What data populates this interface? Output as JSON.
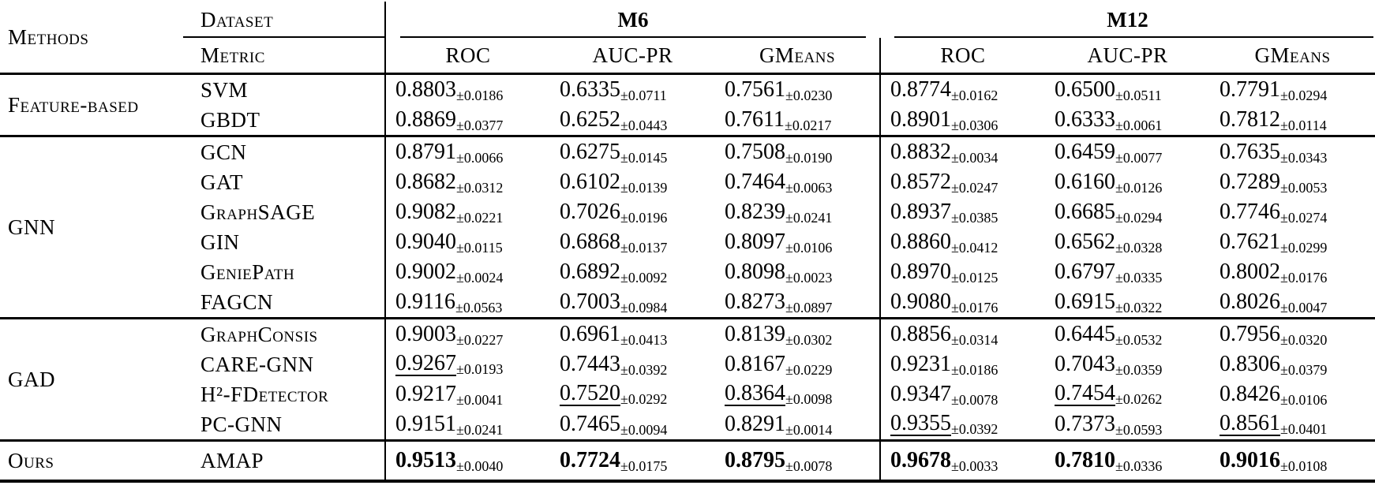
{
  "table": {
    "header": {
      "methods_label": "Methods",
      "dataset_label": "Dataset",
      "metric_label": "Metric",
      "datasets": [
        "M6",
        "M12"
      ],
      "metrics": [
        "ROC",
        "AUC-PR",
        "GMeans"
      ]
    },
    "groups": [
      {
        "name": "Feature-based",
        "rows": [
          {
            "model": "SVM",
            "cells": [
              {
                "v": "0.8803",
                "s": "0.0186"
              },
              {
                "v": "0.6335",
                "s": "0.0711"
              },
              {
                "v": "0.7561",
                "s": "0.0230"
              },
              {
                "v": "0.8774",
                "s": "0.0162"
              },
              {
                "v": "0.6500",
                "s": "0.0511"
              },
              {
                "v": "0.7791",
                "s": "0.0294"
              }
            ]
          },
          {
            "model": "GBDT",
            "cells": [
              {
                "v": "0.8869",
                "s": "0.0377"
              },
              {
                "v": "0.6252",
                "s": "0.0443"
              },
              {
                "v": "0.7611",
                "s": "0.0217"
              },
              {
                "v": "0.8901",
                "s": "0.0306"
              },
              {
                "v": "0.6333",
                "s": "0.0061"
              },
              {
                "v": "0.7812",
                "s": "0.0114"
              }
            ]
          }
        ]
      },
      {
        "name": "GNN",
        "rows": [
          {
            "model": "GCN",
            "cells": [
              {
                "v": "0.8791",
                "s": "0.0066"
              },
              {
                "v": "0.6275",
                "s": "0.0145"
              },
              {
                "v": "0.7508",
                "s": "0.0190"
              },
              {
                "v": "0.8832",
                "s": "0.0034"
              },
              {
                "v": "0.6459",
                "s": "0.0077"
              },
              {
                "v": "0.7635",
                "s": "0.0343"
              }
            ]
          },
          {
            "model": "GAT",
            "cells": [
              {
                "v": "0.8682",
                "s": "0.0312"
              },
              {
                "v": "0.6102",
                "s": "0.0139"
              },
              {
                "v": "0.7464",
                "s": "0.0063"
              },
              {
                "v": "0.8572",
                "s": "0.0247"
              },
              {
                "v": "0.6160",
                "s": "0.0126"
              },
              {
                "v": "0.7289",
                "s": "0.0053"
              }
            ]
          },
          {
            "model": "GraphSAGE",
            "cells": [
              {
                "v": "0.9082",
                "s": "0.0221"
              },
              {
                "v": "0.7026",
                "s": "0.0196"
              },
              {
                "v": "0.8239",
                "s": "0.0241"
              },
              {
                "v": "0.8937",
                "s": "0.0385"
              },
              {
                "v": "0.6685",
                "s": "0.0294"
              },
              {
                "v": "0.7746",
                "s": "0.0274"
              }
            ]
          },
          {
            "model": "GIN",
            "cells": [
              {
                "v": "0.9040",
                "s": "0.0115"
              },
              {
                "v": "0.6868",
                "s": "0.0137"
              },
              {
                "v": "0.8097",
                "s": "0.0106"
              },
              {
                "v": "0.8860",
                "s": "0.0412"
              },
              {
                "v": "0.6562",
                "s": "0.0328"
              },
              {
                "v": "0.7621",
                "s": "0.0299"
              }
            ]
          },
          {
            "model": "GeniePath",
            "cells": [
              {
                "v": "0.9002",
                "s": "0.0024"
              },
              {
                "v": "0.6892",
                "s": "0.0092"
              },
              {
                "v": "0.8098",
                "s": "0.0023"
              },
              {
                "v": "0.8970",
                "s": "0.0125"
              },
              {
                "v": "0.6797",
                "s": "0.0335"
              },
              {
                "v": "0.8002",
                "s": "0.0176"
              }
            ]
          },
          {
            "model": "FAGCN",
            "cells": [
              {
                "v": "0.9116",
                "s": "0.0563"
              },
              {
                "v": "0.7003",
                "s": "0.0984"
              },
              {
                "v": "0.8273",
                "s": "0.0897"
              },
              {
                "v": "0.9080",
                "s": "0.0176"
              },
              {
                "v": "0.6915",
                "s": "0.0322"
              },
              {
                "v": "0.8026",
                "s": "0.0047"
              }
            ]
          }
        ]
      },
      {
        "name": "GAD",
        "rows": [
          {
            "model": "GraphConsis",
            "cells": [
              {
                "v": "0.9003",
                "s": "0.0227"
              },
              {
                "v": "0.6961",
                "s": "0.0413"
              },
              {
                "v": "0.8139",
                "s": "0.0302"
              },
              {
                "v": "0.8856",
                "s": "0.0314"
              },
              {
                "v": "0.6445",
                "s": "0.0532"
              },
              {
                "v": "0.7956",
                "s": "0.0320"
              }
            ]
          },
          {
            "model": "CARE-GNN",
            "cells": [
              {
                "v": "0.9267",
                "s": "0.0193",
                "u": true
              },
              {
                "v": "0.7443",
                "s": "0.0392"
              },
              {
                "v": "0.8167",
                "s": "0.0229"
              },
              {
                "v": "0.9231",
                "s": "0.0186"
              },
              {
                "v": "0.7043",
                "s": "0.0359"
              },
              {
                "v": "0.8306",
                "s": "0.0379"
              }
            ]
          },
          {
            "model": "H²-FDetector",
            "cells": [
              {
                "v": "0.9217",
                "s": "0.0041"
              },
              {
                "v": "0.7520",
                "s": "0.0292",
                "u": true
              },
              {
                "v": "0.8364",
                "s": "0.0098",
                "u": true
              },
              {
                "v": "0.9347",
                "s": "0.0078"
              },
              {
                "v": "0.7454",
                "s": "0.0262",
                "u": true
              },
              {
                "v": "0.8426",
                "s": "0.0106"
              }
            ]
          },
          {
            "model": "PC-GNN",
            "cells": [
              {
                "v": "0.9151",
                "s": "0.0241"
              },
              {
                "v": "0.7465",
                "s": "0.0094"
              },
              {
                "v": "0.8291",
                "s": "0.0014"
              },
              {
                "v": "0.9355",
                "s": "0.0392",
                "u": true
              },
              {
                "v": "0.7373",
                "s": "0.0593"
              },
              {
                "v": "0.8561",
                "s": "0.0401",
                "u": true
              }
            ]
          }
        ]
      },
      {
        "name": "Ours",
        "rows": [
          {
            "model": "AMAP",
            "bold": true,
            "cells": [
              {
                "v": "0.9513",
                "s": "0.0040"
              },
              {
                "v": "0.7724",
                "s": "0.0175"
              },
              {
                "v": "0.8795",
                "s": "0.0078"
              },
              {
                "v": "0.9678",
                "s": "0.0033"
              },
              {
                "v": "0.7810",
                "s": "0.0336"
              },
              {
                "v": "0.9016",
                "s": "0.0108"
              }
            ]
          }
        ]
      }
    ]
  }
}
